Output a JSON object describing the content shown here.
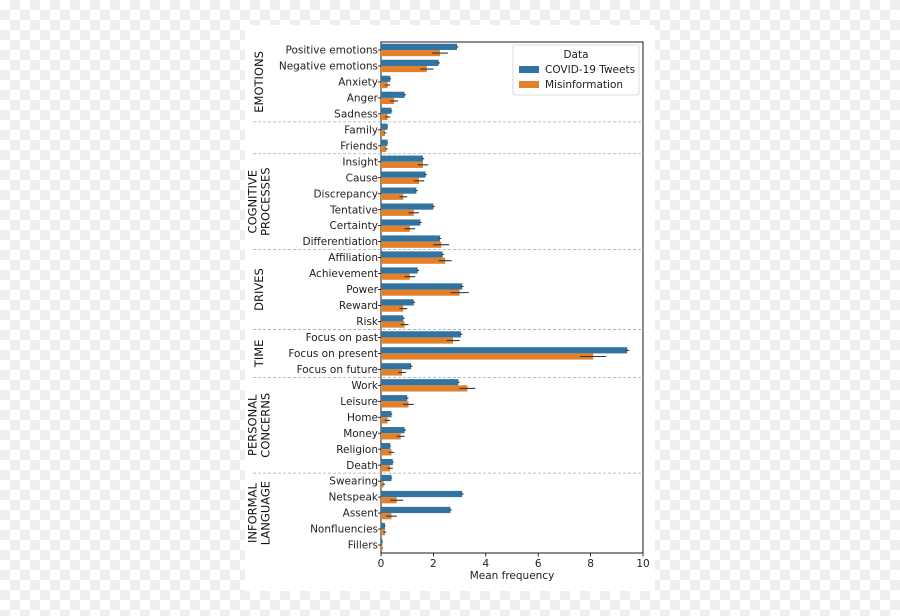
{
  "chart_data": {
    "type": "bar",
    "orientation": "horizontal",
    "xlabel": "Mean frequency",
    "xlim": [
      0,
      10
    ],
    "xticks": [
      0,
      2,
      4,
      6,
      8,
      10
    ],
    "legend": {
      "title": "Data",
      "placement": "top-right"
    },
    "colors": {
      "COVID-19 Tweets": "#3274a1",
      "Misinformation": "#e1812c",
      "errorbar": "#333333",
      "separator": "#aaaaaa"
    },
    "categories": [
      "Positive emotions",
      "Negative emotions",
      "Anxiety",
      "Anger",
      "Sadness",
      "Family",
      "Friends",
      "Insight",
      "Cause",
      "Discrepancy",
      "Tentative",
      "Certainty",
      "Differentiation",
      "Affiliation",
      "Achievement",
      "Power",
      "Reward",
      "Risk",
      "Focus on past",
      "Focus on present",
      "Focus on future",
      "Work",
      "Leisure",
      "Home",
      "Money",
      "Religion",
      "Death",
      "Swearing",
      "Netspeak",
      "Assent",
      "Nonfluencies",
      "Fillers"
    ],
    "groups": [
      {
        "lines": [
          "EMOTIONS"
        ],
        "start": 0,
        "end": 4
      },
      {
        "lines": [],
        "start": 5,
        "end": 6
      },
      {
        "lines": [
          "COGNITIVE",
          "PROCESSES"
        ],
        "start": 7,
        "end": 12
      },
      {
        "lines": [
          "DRIVES"
        ],
        "start": 13,
        "end": 17
      },
      {
        "lines": [
          "TIME"
        ],
        "start": 18,
        "end": 20
      },
      {
        "lines": [
          "PERSONAL",
          "CONCERNS"
        ],
        "start": 21,
        "end": 26
      },
      {
        "lines": [
          "INFORMAL",
          "LANGUAGE"
        ],
        "start": 27,
        "end": 31
      }
    ],
    "series": [
      {
        "name": "COVID-19 Tweets",
        "values": [
          2.9,
          2.2,
          0.35,
          0.9,
          0.4,
          0.25,
          0.25,
          1.6,
          1.7,
          1.35,
          2.0,
          1.5,
          2.25,
          2.35,
          1.4,
          3.1,
          1.25,
          0.85,
          3.05,
          9.4,
          1.15,
          2.95,
          1.0,
          0.4,
          0.9,
          0.35,
          0.45,
          0.4,
          3.1,
          2.65,
          0.15,
          0.05
        ],
        "errors": [
          0.05,
          0.05,
          0.03,
          0.05,
          0.03,
          0.02,
          0.02,
          0.05,
          0.05,
          0.05,
          0.05,
          0.05,
          0.05,
          0.05,
          0.05,
          0.05,
          0.05,
          0.05,
          0.05,
          0.08,
          0.05,
          0.05,
          0.05,
          0.03,
          0.05,
          0.03,
          0.03,
          0.03,
          0.05,
          0.05,
          0.02,
          0.02
        ]
      },
      {
        "name": "Misinformation",
        "values": [
          2.25,
          1.75,
          0.25,
          0.5,
          0.25,
          0.15,
          0.2,
          1.6,
          1.45,
          0.85,
          1.25,
          1.1,
          2.3,
          2.45,
          1.1,
          3.0,
          0.85,
          0.9,
          2.75,
          8.1,
          0.8,
          3.3,
          1.05,
          0.25,
          0.75,
          0.4,
          0.35,
          0.1,
          0.6,
          0.4,
          0.15,
          0.05
        ],
        "errors": [
          0.3,
          0.25,
          0.1,
          0.15,
          0.1,
          0.05,
          0.05,
          0.2,
          0.2,
          0.15,
          0.2,
          0.2,
          0.3,
          0.25,
          0.2,
          0.35,
          0.15,
          0.15,
          0.25,
          0.5,
          0.15,
          0.3,
          0.2,
          0.1,
          0.15,
          0.1,
          0.1,
          0.05,
          0.25,
          0.2,
          0.05,
          0.02
        ]
      }
    ]
  }
}
